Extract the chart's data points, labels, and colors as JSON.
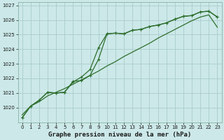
{
  "title": "Graphe pression niveau de la mer (hPa)",
  "background_color": "#cce8e8",
  "grid_color": "#aacccc",
  "line_color": "#2d6e2d",
  "xlim": [
    -0.5,
    23.5
  ],
  "ylim": [
    1019.0,
    1027.2
  ],
  "yticks": [
    1020,
    1021,
    1022,
    1023,
    1024,
    1025,
    1026,
    1027
  ],
  "xticks": [
    0,
    1,
    2,
    3,
    4,
    5,
    6,
    7,
    8,
    9,
    10,
    11,
    12,
    13,
    14,
    15,
    16,
    17,
    18,
    19,
    20,
    21,
    22,
    23
  ],
  "line1_x": [
    0,
    1,
    2,
    3,
    4,
    5,
    6,
    7,
    8,
    9,
    10,
    11,
    12,
    13,
    14,
    15,
    16,
    17,
    18,
    19,
    20,
    21,
    22,
    23
  ],
  "line1_y": [
    1019.5,
    1020.1,
    1020.4,
    1020.8,
    1021.05,
    1021.3,
    1021.6,
    1021.9,
    1022.2,
    1022.5,
    1022.85,
    1023.15,
    1023.5,
    1023.8,
    1024.1,
    1024.4,
    1024.75,
    1025.05,
    1025.35,
    1025.65,
    1025.95,
    1026.2,
    1026.35,
    1025.5
  ],
  "line2_x": [
    0,
    1,
    2,
    3,
    4,
    5,
    6,
    7,
    8,
    9,
    10,
    11,
    12,
    13,
    14,
    15,
    16,
    17,
    18,
    19,
    20,
    21,
    22,
    23
  ],
  "line2_y": [
    1019.3,
    1020.1,
    1020.5,
    1021.05,
    1021.0,
    1021.05,
    1021.8,
    1021.85,
    1022.2,
    1023.3,
    1025.05,
    1025.1,
    1025.05,
    1025.3,
    1025.35,
    1025.55,
    1025.65,
    1025.8,
    1026.05,
    1026.25,
    1026.3,
    1026.55,
    1026.6,
    1026.2
  ],
  "line3_x": [
    0,
    1,
    2,
    3,
    4,
    5,
    6,
    7,
    8,
    9,
    10,
    11,
    12,
    13,
    14,
    15,
    16,
    17,
    18,
    19,
    20,
    21,
    22,
    23
  ],
  "line3_y": [
    1019.3,
    1020.1,
    1020.5,
    1021.05,
    1021.0,
    1021.05,
    1021.75,
    1022.1,
    1022.6,
    1024.1,
    1025.05,
    1025.1,
    1025.05,
    1025.3,
    1025.35,
    1025.55,
    1025.65,
    1025.8,
    1026.05,
    1026.25,
    1026.3,
    1026.55,
    1026.6,
    1026.2
  ],
  "ylabel_fontsize": 5.5,
  "xlabel_fontsize": 6.5,
  "tick_fontsize": 5.0
}
